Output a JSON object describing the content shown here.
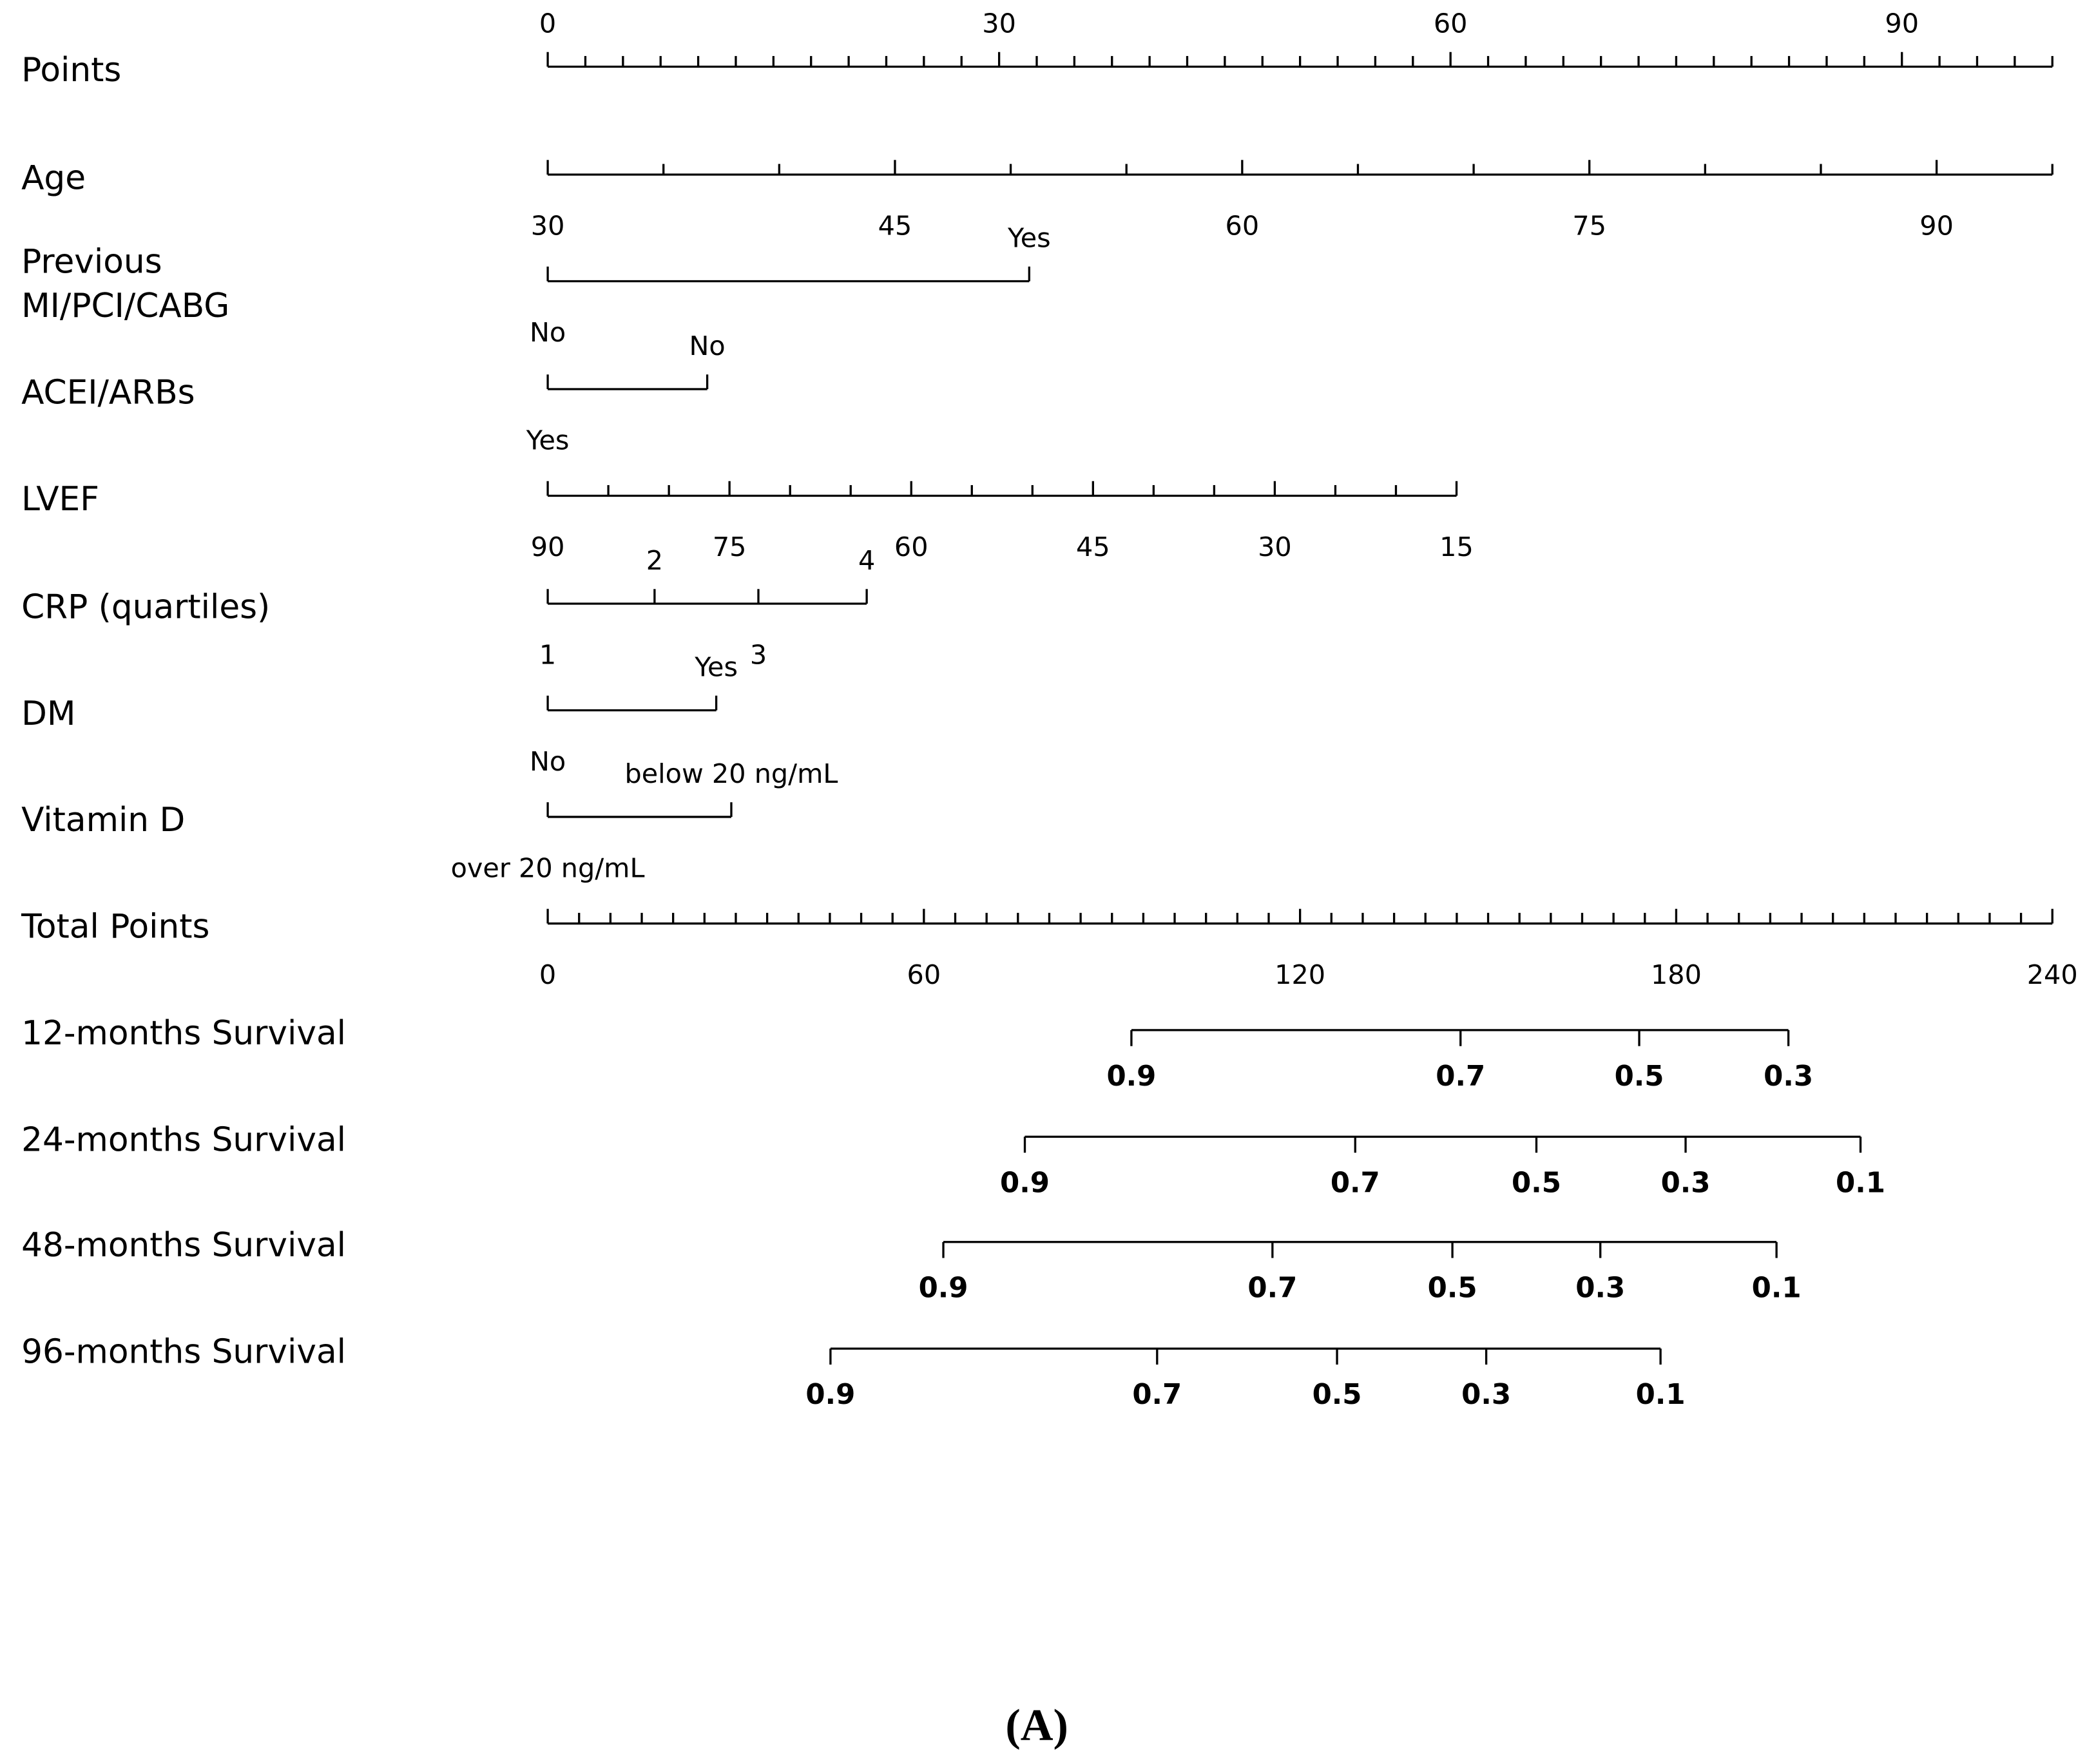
{
  "chart_data": {
    "type": "nomogram",
    "caption": "(A)",
    "points_axis": {
      "label": "Points",
      "lim": [
        0,
        100
      ],
      "ticks": [
        0,
        2.5,
        5,
        7.5,
        10,
        12.5,
        15,
        17.5,
        20,
        22.5,
        25,
        27.5,
        30,
        32.5,
        35,
        37.5,
        40,
        42.5,
        45,
        47.5,
        50,
        52.5,
        55,
        57.5,
        60,
        62.5,
        65,
        67.5,
        70,
        72.5,
        75,
        77.5,
        80,
        82.5,
        85,
        87.5,
        90,
        92.5,
        95,
        97.5,
        100
      ],
      "labels": [
        0,
        30,
        60,
        90
      ]
    },
    "predictors": [
      {
        "label": "Age",
        "lim": [
          30,
          95
        ],
        "points": [
          0,
          100
        ],
        "ticks": [
          30,
          35,
          40,
          45,
          50,
          55,
          60,
          65,
          70,
          75,
          80,
          85,
          90,
          95
        ],
        "labels": [
          30,
          45,
          60,
          75,
          90
        ]
      },
      {
        "label": [
          "Previous",
          "MI/PCI/CABG"
        ],
        "levels": [
          "No",
          "Yes"
        ],
        "points": [
          0,
          32
        ]
      },
      {
        "label": "ACEI/ARBs",
        "levels": [
          "Yes",
          "No"
        ],
        "points": [
          0,
          10.6
        ]
      },
      {
        "label": "LVEF",
        "lim": [
          90,
          15
        ],
        "points": [
          0,
          60.4
        ],
        "ticks": [
          90,
          85,
          80,
          75,
          70,
          65,
          60,
          55,
          50,
          45,
          40,
          35,
          30,
          25,
          20,
          15
        ],
        "labels": [
          90,
          75,
          60,
          45,
          30,
          15
        ]
      },
      {
        "label": "CRP (quartiles)",
        "levels": [
          "1",
          "2",
          "3",
          "4"
        ],
        "points": [
          0,
          7.1,
          14,
          21.2
        ]
      },
      {
        "label": "DM",
        "levels": [
          "No",
          "Yes"
        ],
        "points": [
          0,
          11.2
        ]
      },
      {
        "label": "Vitamin D",
        "levels": [
          "over 20 ng/mL",
          "below 20 ng/mL"
        ],
        "points": [
          0,
          12.2
        ]
      }
    ],
    "total_points": {
      "label": "Total Points",
      "lim": [
        0,
        240
      ],
      "ticks": [
        0,
        5,
        10,
        15,
        20,
        25,
        30,
        35,
        40,
        45,
        50,
        55,
        60,
        65,
        70,
        75,
        80,
        85,
        90,
        95,
        100,
        105,
        110,
        115,
        120,
        125,
        130,
        135,
        140,
        145,
        150,
        155,
        160,
        165,
        170,
        175,
        180,
        185,
        190,
        195,
        200,
        205,
        210,
        215,
        220,
        225,
        230,
        235,
        240
      ],
      "labels": [
        0,
        60,
        120,
        180,
        240
      ]
    },
    "survival": [
      {
        "label": "12-months Survival",
        "values": [
          0.9,
          0.7,
          0.5,
          0.3
        ],
        "total_points": [
          93.1,
          145.6,
          174.1,
          197.9
        ]
      },
      {
        "label": "24-months Survival",
        "values": [
          0.9,
          0.7,
          0.5,
          0.3,
          0.1
        ],
        "total_points": [
          76.1,
          128.8,
          157.7,
          181.5,
          209.4
        ]
      },
      {
        "label": "48-months Survival",
        "values": [
          0.9,
          0.7,
          0.5,
          0.3,
          0.1
        ],
        "total_points": [
          63.1,
          115.6,
          144.3,
          167.9,
          196.0
        ]
      },
      {
        "label": "96-months Survival",
        "values": [
          0.9,
          0.7,
          0.5,
          0.3,
          0.1
        ],
        "total_points": [
          45.1,
          97.2,
          125.9,
          149.7,
          177.5
        ]
      }
    ]
  }
}
